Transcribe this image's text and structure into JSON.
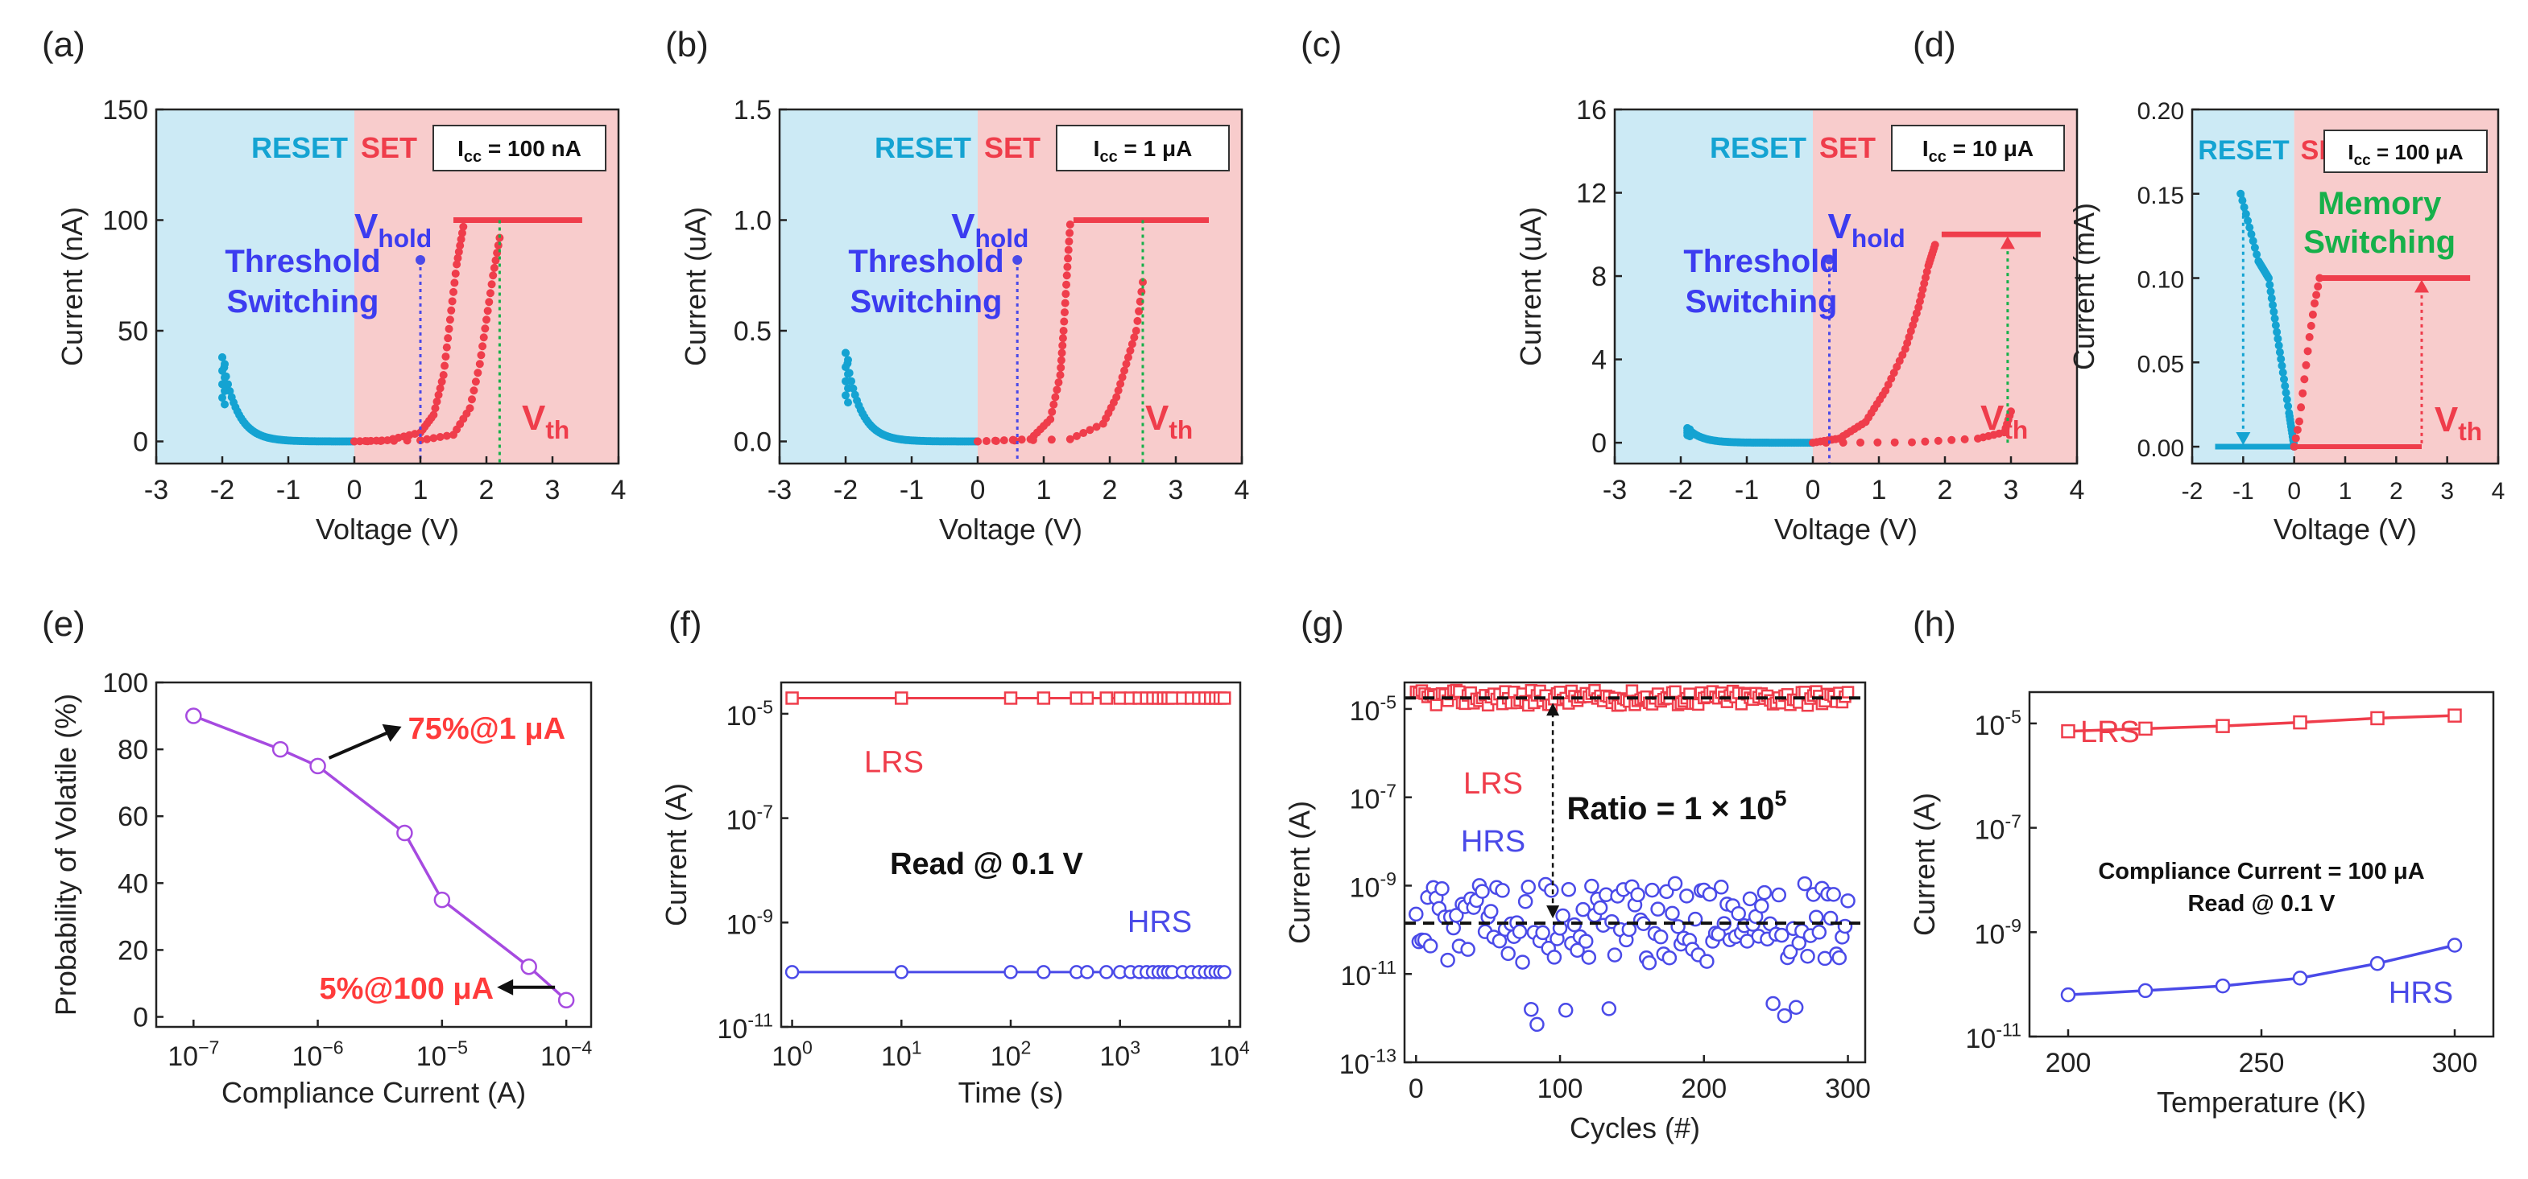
{
  "figure": {
    "colors": {
      "reset_region": "#cceaf5",
      "set_region": "#f8cccc",
      "red": "#ef3d4b",
      "cyan": "#14a3d2",
      "blue": "#4a4ae8",
      "blue_text": "#3c3cf0",
      "green": "#16b04a",
      "purple": "#a64ae0",
      "arrow_red": "#ff3b3b"
    }
  },
  "chart_data": [
    {
      "panel": "(a)",
      "type": "scatter",
      "xlabel": "Voltage (V)",
      "ylabel": "Current (nA)",
      "xlim": [
        -3,
        4
      ],
      "ylim": [
        -10,
        150
      ],
      "xticks": [
        "-3",
        "-2",
        "-1",
        "0",
        "1",
        "2",
        "3",
        "4"
      ],
      "yticks": [
        "0",
        "50",
        "100",
        "150"
      ],
      "ytick_values": [
        0,
        50,
        100,
        150
      ],
      "regions": {
        "reset": "RESET",
        "set": "SET"
      },
      "compliance_label": "I",
      "compliance_sub": "cc",
      "compliance_value": " = 100 nA",
      "vhold_label": "V",
      "vhold_sub": "hold",
      "vhold": 1.0,
      "vhold_top": 82,
      "vth_label": "V",
      "vth_sub": "th",
      "vth": 2.2,
      "annotation_lines": [
        "Threshold",
        "Switching"
      ],
      "reset_sweep": {
        "x_start": -2.0,
        "y_start": 38,
        "curvature": 9
      },
      "set_sweep": {
        "steps": 46,
        "points": [
          [
            0,
            0
          ],
          [
            0.5,
            0.5
          ],
          [
            1.0,
            4
          ],
          [
            1.2,
            12
          ],
          [
            1.35,
            30
          ],
          [
            1.45,
            55
          ],
          [
            1.55,
            80
          ],
          [
            1.65,
            97
          ]
        ]
      },
      "return_sweep": {
        "steps": 38,
        "points": [
          [
            0,
            0
          ],
          [
            1.0,
            0.5
          ],
          [
            1.5,
            3
          ],
          [
            1.75,
            15
          ],
          [
            1.9,
            35
          ],
          [
            2.0,
            55
          ],
          [
            2.1,
            75
          ],
          [
            2.2,
            92
          ]
        ]
      },
      "compliance_line": {
        "x": [
          1.5,
          3.45
        ],
        "y": 100
      }
    },
    {
      "panel": "(b)",
      "type": "scatter",
      "xlabel": "Voltage (V)",
      "ylabel": "Current (uA)",
      "xlim": [
        -3,
        4
      ],
      "ylim": [
        -0.1,
        1.5
      ],
      "xticks": [
        "-3",
        "-2",
        "-1",
        "0",
        "1",
        "2",
        "3",
        "4"
      ],
      "yticks": [
        "0.0",
        "0.5",
        "1.0",
        "1.5"
      ],
      "ytick_values": [
        0,
        0.5,
        1.0,
        1.5
      ],
      "regions": {
        "reset": "RESET",
        "set": "SET"
      },
      "compliance_label": "I",
      "compliance_sub": "cc",
      "compliance_value": " = 1 μA",
      "vhold_label": "V",
      "vhold_sub": "hold",
      "vhold": 0.6,
      "vhold_top": 0.82,
      "vth_label": "V",
      "vth_sub": "th",
      "vth": 2.5,
      "annotation_lines": [
        "Threshold",
        "Switching"
      ],
      "reset_sweep": {
        "x_start": -2.0,
        "y_start": 0.4,
        "curvature": 9
      },
      "set_sweep": {
        "steps": 40,
        "points": [
          [
            0,
            0
          ],
          [
            0.8,
            0.01
          ],
          [
            1.1,
            0.1
          ],
          [
            1.25,
            0.3
          ],
          [
            1.3,
            0.5
          ],
          [
            1.35,
            0.75
          ],
          [
            1.4,
            0.98
          ]
        ]
      },
      "return_sweep": {
        "steps": 36,
        "points": [
          [
            0,
            0
          ],
          [
            1.4,
            0.01
          ],
          [
            1.9,
            0.08
          ],
          [
            2.1,
            0.2
          ],
          [
            2.25,
            0.35
          ],
          [
            2.4,
            0.5
          ],
          [
            2.5,
            0.72
          ]
        ]
      },
      "compliance_line": {
        "x": [
          1.45,
          3.5
        ],
        "y": 1.0
      }
    },
    {
      "panel": "(c)",
      "type": "scatter",
      "xlabel": "Voltage (V)",
      "ylabel": "Current (uA)",
      "xlim": [
        -3,
        4
      ],
      "ylim": [
        -1,
        16
      ],
      "xticks": [
        "-3",
        "-2",
        "-1",
        "0",
        "1",
        "2",
        "3",
        "4"
      ],
      "yticks": [
        "0",
        "4",
        "8",
        "12",
        "16"
      ],
      "ytick_values": [
        0,
        4,
        8,
        12,
        16
      ],
      "regions": {
        "reset": "RESET",
        "set": "SET"
      },
      "compliance_label": "I",
      "compliance_sub": "cc",
      "compliance_value": " = 10 μA",
      "vhold_label": "V",
      "vhold_sub": "hold",
      "vhold": 0.25,
      "vhold_top": 8.8,
      "vth_label": "V",
      "vth_sub": "th",
      "vth": 2.95,
      "annotation_lines": [
        "Threshold",
        "Switching"
      ],
      "reset_sweep": {
        "x_start": -1.9,
        "y_start": 0.7,
        "curvature": 9
      },
      "set_sweep": {
        "steps": 54,
        "points": [
          [
            0,
            0
          ],
          [
            0.4,
            0.2
          ],
          [
            0.8,
            1
          ],
          [
            1.1,
            2.5
          ],
          [
            1.4,
            4.5
          ],
          [
            1.6,
            6.5
          ],
          [
            1.75,
            8.5
          ],
          [
            1.85,
            9.5
          ]
        ]
      },
      "return_sweep": {
        "steps": 26,
        "points": [
          [
            0.2,
            0
          ],
          [
            1.5,
            0.02
          ],
          [
            2.5,
            0.2
          ],
          [
            2.9,
            0.5
          ],
          [
            3.0,
            1.5
          ]
        ]
      },
      "compliance_line": {
        "x": [
          1.95,
          3.45
        ],
        "y": 10
      }
    },
    {
      "panel": "(d)",
      "type": "line",
      "xlabel": "Voltage (V)",
      "ylabel": "Current (mA)",
      "xlim": [
        -2,
        4
      ],
      "ylim": [
        -0.01,
        0.2
      ],
      "xticks": [
        "-2",
        "-1",
        "0",
        "1",
        "2",
        "3",
        "4"
      ],
      "yticks": [
        "0.00",
        "0.05",
        "0.10",
        "0.15",
        "0.20"
      ],
      "ytick_values": [
        0,
        0.05,
        0.1,
        0.15,
        0.2
      ],
      "regions": {
        "reset": "RESET",
        "set": "SET"
      },
      "compliance_label": "I",
      "compliance_sub": "cc",
      "compliance_value": " = 100 μA",
      "vth_label": "V",
      "vth_sub": "th",
      "vth": 2.5,
      "annotation_lines": [
        "Memory",
        "Switching"
      ],
      "reset_points": [
        [
          -1.55,
          0
        ],
        [
          -1.0,
          0
        ],
        [
          -1.05,
          0.15
        ],
        [
          -0.7,
          0.11
        ],
        [
          -0.5,
          0.1
        ],
        [
          -0.3,
          0.06
        ],
        [
          -0.1,
          0.02
        ],
        [
          0,
          0
        ]
      ],
      "reset_arrow": {
        "x": -1.0,
        "from": 0.15,
        "to": 0.002
      },
      "set_points": [
        [
          0,
          0
        ],
        [
          0.1,
          0.015
        ],
        [
          0.2,
          0.04
        ],
        [
          0.3,
          0.065
        ],
        [
          0.4,
          0.085
        ],
        [
          0.5,
          0.1
        ]
      ],
      "set_flat": {
        "x": [
          0.5,
          3.45
        ],
        "y": 0.1
      },
      "set_low": {
        "x": [
          0,
          2.5
        ],
        "y": 0
      },
      "set_arrow": {
        "x": 2.5,
        "from": 0.002,
        "to": 0.1
      }
    },
    {
      "panel": "(e)",
      "type": "line",
      "xlabel": "Compliance Current (A)",
      "ylabel": "Probability of Volatile (%)",
      "x": [
        1e-07,
        5e-07,
        1e-06,
        5e-06,
        1e-05,
        5e-05,
        0.0001
      ],
      "y": [
        90,
        80,
        75,
        55,
        35,
        15,
        5
      ],
      "xlim_log": [
        -7.3,
        -3.8
      ],
      "ylim": [
        -3,
        100
      ],
      "xticks": [
        {
          "b": "10",
          "e": "−7",
          "v": -7
        },
        {
          "b": "10",
          "e": "−6",
          "v": -6
        },
        {
          "b": "10",
          "e": "−5",
          "v": -5
        },
        {
          "b": "10",
          "e": "−4",
          "v": -4
        }
      ],
      "yticks": [
        "0",
        "20",
        "40",
        "60",
        "80",
        "100"
      ],
      "ytick_values": [
        0,
        20,
        40,
        60,
        80,
        100
      ],
      "annotations": [
        "75%@1 μA",
        "5%@100 μA"
      ]
    },
    {
      "panel": "(f)",
      "type": "line",
      "xlabel": "Time (s)",
      "ylabel": "Current (A)",
      "xlim_log": [
        -0.1,
        4.1
      ],
      "ylim_log": [
        -11,
        -4.4
      ],
      "xticks": [
        {
          "b": "10",
          "e": "0",
          "v": 0
        },
        {
          "b": "10",
          "e": "1",
          "v": 1
        },
        {
          "b": "10",
          "e": "2",
          "v": 2
        },
        {
          "b": "10",
          "e": "3",
          "v": 3
        },
        {
          "b": "10",
          "e": "4",
          "v": 4
        }
      ],
      "yticks": [
        {
          "b": "10",
          "e": "-11",
          "v": -11
        },
        {
          "b": "10",
          "e": "-9",
          "v": -9
        },
        {
          "b": "10",
          "e": "-7",
          "v": -7
        },
        {
          "b": "10",
          "e": "-5",
          "v": -5
        }
      ],
      "series": [
        {
          "name": "LRS",
          "log_value": -4.7,
          "marker": "square"
        },
        {
          "name": "HRS",
          "log_value": -9.95,
          "marker": "circle"
        }
      ],
      "annotation": "Read @ 0.1 V"
    },
    {
      "panel": "(g)",
      "type": "scatter",
      "xlabel": "Cycles (#)",
      "ylabel": "Current (A)",
      "xlim": [
        -8,
        312
      ],
      "ylim_log": [
        -13,
        -4.4
      ],
      "xticks": [
        "0",
        "100",
        "200",
        "300"
      ],
      "xtick_values": [
        0,
        100,
        200,
        300
      ],
      "yticks": [
        {
          "b": "10",
          "e": "-13",
          "v": -13
        },
        {
          "b": "10",
          "e": "-11",
          "v": -11
        },
        {
          "b": "10",
          "e": "-9",
          "v": -9
        },
        {
          "b": "10",
          "e": "-7",
          "v": -7
        },
        {
          "b": "10",
          "e": "-5",
          "v": -5
        }
      ],
      "series": [
        {
          "name": "LRS",
          "mean_log": -4.75,
          "spread": 0.18,
          "marker": "square"
        },
        {
          "name": "HRS",
          "mean_log": -9.85,
          "spread": 0.9,
          "marker": "circle"
        }
      ],
      "cycles": 300,
      "ratio_label": "Ratio = 1 × 10",
      "ratio_exp": "5"
    },
    {
      "panel": "(h)",
      "type": "line",
      "xlabel": "Temperature (K)",
      "ylabel": "Current (A)",
      "x": [
        200,
        220,
        240,
        260,
        280,
        300
      ],
      "xlim": [
        190,
        310
      ],
      "ylim_log": [
        -11,
        -4.4
      ],
      "xticks": [
        "200",
        "250",
        "300"
      ],
      "xtick_values": [
        200,
        250,
        300
      ],
      "yticks": [
        {
          "b": "10",
          "e": "-11",
          "v": -11
        },
        {
          "b": "10",
          "e": "-9",
          "v": -9
        },
        {
          "b": "10",
          "e": "-7",
          "v": -7
        },
        {
          "b": "10",
          "e": "-5",
          "v": -5
        }
      ],
      "series": [
        {
          "name": "LRS",
          "log_values": [
            -5.15,
            -5.1,
            -5.05,
            -4.98,
            -4.9,
            -4.85
          ],
          "marker": "square"
        },
        {
          "name": "HRS",
          "log_values": [
            -10.2,
            -10.12,
            -10.03,
            -9.88,
            -9.6,
            -9.25
          ],
          "marker": "circle"
        }
      ],
      "annotation_lines": [
        "Compliance Current = 100 μA",
        "Read @ 0.1 V"
      ]
    }
  ]
}
